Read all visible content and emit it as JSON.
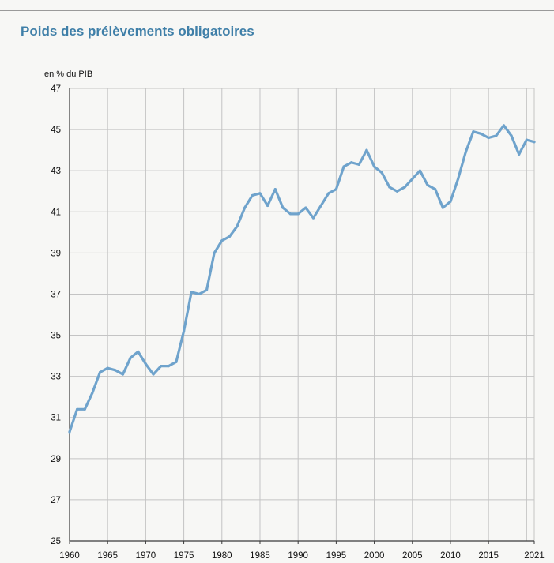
{
  "title": "Poids des prélèvements obligatoires",
  "colors": {
    "line": "#6fa3cc",
    "title": "#3f7fa8",
    "grid": "#c4c4c4",
    "axis": "#3a3a3a"
  },
  "chart_data": {
    "type": "line",
    "title": "Poids des prélèvements obligatoires",
    "ylabel": "en % du PIB",
    "xlabel": "",
    "xlim": [
      1960,
      2021
    ],
    "ylim": [
      25,
      47
    ],
    "grid": true,
    "x_ticks": [
      1960,
      1965,
      1970,
      1975,
      1980,
      1985,
      1990,
      1995,
      2000,
      2005,
      2010,
      2015,
      2021
    ],
    "y_ticks": [
      25,
      27,
      29,
      31,
      33,
      35,
      37,
      39,
      41,
      43,
      45,
      47
    ],
    "series": [
      {
        "name": "Prélèvements obligatoires",
        "x": [
          1960,
          1961,
          1962,
          1963,
          1964,
          1965,
          1966,
          1967,
          1968,
          1969,
          1970,
          1971,
          1972,
          1973,
          1974,
          1975,
          1976,
          1977,
          1978,
          1979,
          1980,
          1981,
          1982,
          1983,
          1984,
          1985,
          1986,
          1987,
          1988,
          1989,
          1990,
          1991,
          1992,
          1993,
          1994,
          1995,
          1996,
          1997,
          1998,
          1999,
          2000,
          2001,
          2002,
          2003,
          2004,
          2005,
          2006,
          2007,
          2008,
          2009,
          2010,
          2011,
          2012,
          2013,
          2014,
          2015,
          2016,
          2017,
          2018,
          2019,
          2020,
          2021
        ],
        "values": [
          30.3,
          31.4,
          31.4,
          32.2,
          33.2,
          33.4,
          33.3,
          33.1,
          33.9,
          34.2,
          33.6,
          33.1,
          33.5,
          33.5,
          33.7,
          35.2,
          37.1,
          37.0,
          37.2,
          39.0,
          39.6,
          39.8,
          40.3,
          41.2,
          41.8,
          41.9,
          41.3,
          42.1,
          41.2,
          40.9,
          40.9,
          41.2,
          40.7,
          41.3,
          41.9,
          42.1,
          43.2,
          43.4,
          43.3,
          44.0,
          43.2,
          42.9,
          42.2,
          42.0,
          42.2,
          42.6,
          43.0,
          42.3,
          42.1,
          41.2,
          41.5,
          42.6,
          43.9,
          44.9,
          44.8,
          44.6,
          44.7,
          45.2,
          44.7,
          43.8,
          44.5,
          44.4
        ]
      }
    ]
  }
}
